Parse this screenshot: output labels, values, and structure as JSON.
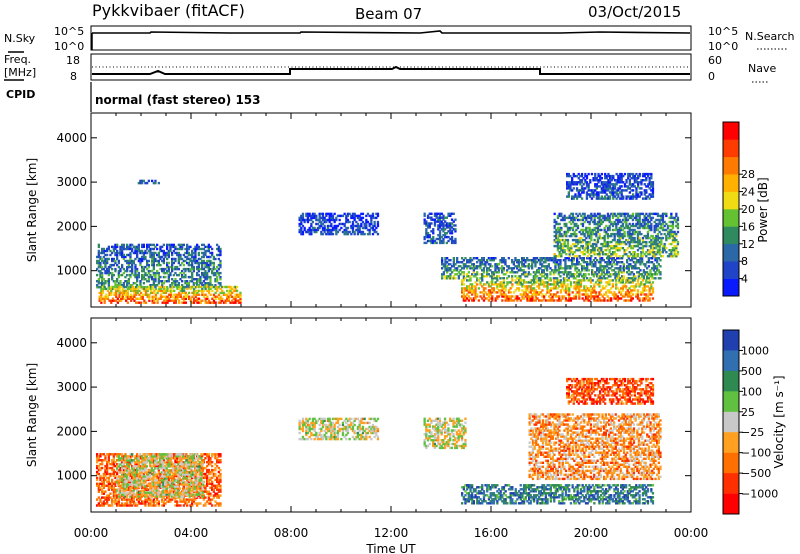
{
  "header": {
    "station": "Pykkvibaer (fitACF)",
    "beam": "Beam 07",
    "date": "03/Oct/2015"
  },
  "status_panels": {
    "nsky_label": "N.Sky",
    "nsky_ticks": [
      "10^5",
      "10^0"
    ],
    "nsearch_label": "N.Search",
    "nsearch_ticks": [
      "10^5",
      "10^0"
    ],
    "freq_label_1": "Freq.",
    "freq_label_2": "[MHz]",
    "freq_ticks": [
      "18",
      "8"
    ],
    "nave_label": "Nave",
    "nave_ticks": [
      "60",
      "0"
    ],
    "cpid_label": "CPID",
    "cpid_value": "normal (fast stereo) 153"
  },
  "chart_data": [
    {
      "type": "heatmap",
      "name": "power",
      "ylabel": "Slant Range [km]",
      "xlabel": "",
      "x_ticks": [
        "00:00",
        "04:00",
        "08:00",
        "12:00",
        "16:00",
        "20:00",
        "00:00"
      ],
      "y_ticks": [
        "1000",
        "2000",
        "3000",
        "4000"
      ],
      "xlim_hours": [
        0,
        24
      ],
      "ylim": [
        180,
        4560
      ],
      "colorbar": {
        "label": "Power [dB]",
        "ticks": [
          "4",
          "8",
          "12",
          "16",
          "20",
          "24",
          "28"
        ],
        "colors": [
          "#0a1aff",
          "#1f44c8",
          "#2b68a8",
          "#2f8a60",
          "#64c232",
          "#f0dc14",
          "#ffb000",
          "#ff7a00",
          "#ff3c00",
          "#ff0000"
        ]
      },
      "echo_regions": [
        {
          "t0": 0.2,
          "t1": 5.2,
          "r0": 600,
          "r1": 1600,
          "level": 0.35
        },
        {
          "t0": 0.3,
          "t1": 6.0,
          "r0": 250,
          "r1": 650,
          "level": 0.85
        },
        {
          "t0": 1.8,
          "t1": 2.8,
          "r0": 2950,
          "r1": 3050,
          "level": 0.2
        },
        {
          "t0": 8.3,
          "t1": 11.5,
          "r0": 1800,
          "r1": 2300,
          "level": 0.15
        },
        {
          "t0": 13.3,
          "t1": 14.6,
          "r0": 1600,
          "r1": 2300,
          "level": 0.25
        },
        {
          "t0": 14.0,
          "t1": 22.8,
          "r0": 800,
          "r1": 1300,
          "level": 0.4
        },
        {
          "t0": 14.8,
          "t1": 22.5,
          "r0": 300,
          "r1": 800,
          "level": 0.85
        },
        {
          "t0": 18.5,
          "t1": 23.5,
          "r0": 1300,
          "r1": 2300,
          "level": 0.45
        },
        {
          "t0": 19.0,
          "t1": 22.5,
          "r0": 2600,
          "r1": 3200,
          "level": 0.2
        }
      ]
    },
    {
      "type": "heatmap",
      "name": "velocity",
      "ylabel": "Slant Range [km]",
      "xlabel": "Time UT",
      "x_ticks": [
        "00:00",
        "04:00",
        "08:00",
        "12:00",
        "16:00",
        "20:00",
        "00:00"
      ],
      "y_ticks": [
        "1000",
        "2000",
        "3000",
        "4000"
      ],
      "xlim_hours": [
        0,
        24
      ],
      "ylim": [
        180,
        4560
      ],
      "colorbar": {
        "label": "Velocity [m s⁻¹]",
        "ticks": [
          "1000",
          "500",
          "100",
          "25",
          "−25",
          "−100",
          "−500",
          "−1000"
        ],
        "colors": [
          "#2040b0",
          "#3070b0",
          "#2e8a50",
          "#60c040",
          "#c8c8c8",
          "#ffa020",
          "#ff7000",
          "#ff3000",
          "#ff0000"
        ]
      },
      "echo_regions": [
        {
          "t0": 0.2,
          "t1": 5.2,
          "r0": 300,
          "r1": 1500,
          "level": -0.5
        },
        {
          "t0": 1.0,
          "t1": 4.5,
          "r0": 500,
          "r1": 1500,
          "level": 0.0
        },
        {
          "t0": 8.3,
          "t1": 11.5,
          "r0": 1800,
          "r1": 2300,
          "level": 0.0
        },
        {
          "t0": 13.3,
          "t1": 15.0,
          "r0": 1600,
          "r1": 2300,
          "level": 0.0
        },
        {
          "t0": 14.8,
          "t1": 22.5,
          "r0": 350,
          "r1": 800,
          "level": 0.6
        },
        {
          "t0": 17.5,
          "t1": 22.8,
          "r0": 900,
          "r1": 2400,
          "level": -0.3
        },
        {
          "t0": 19.0,
          "t1": 22.5,
          "r0": 2600,
          "r1": 3200,
          "level": -0.6
        }
      ]
    }
  ]
}
